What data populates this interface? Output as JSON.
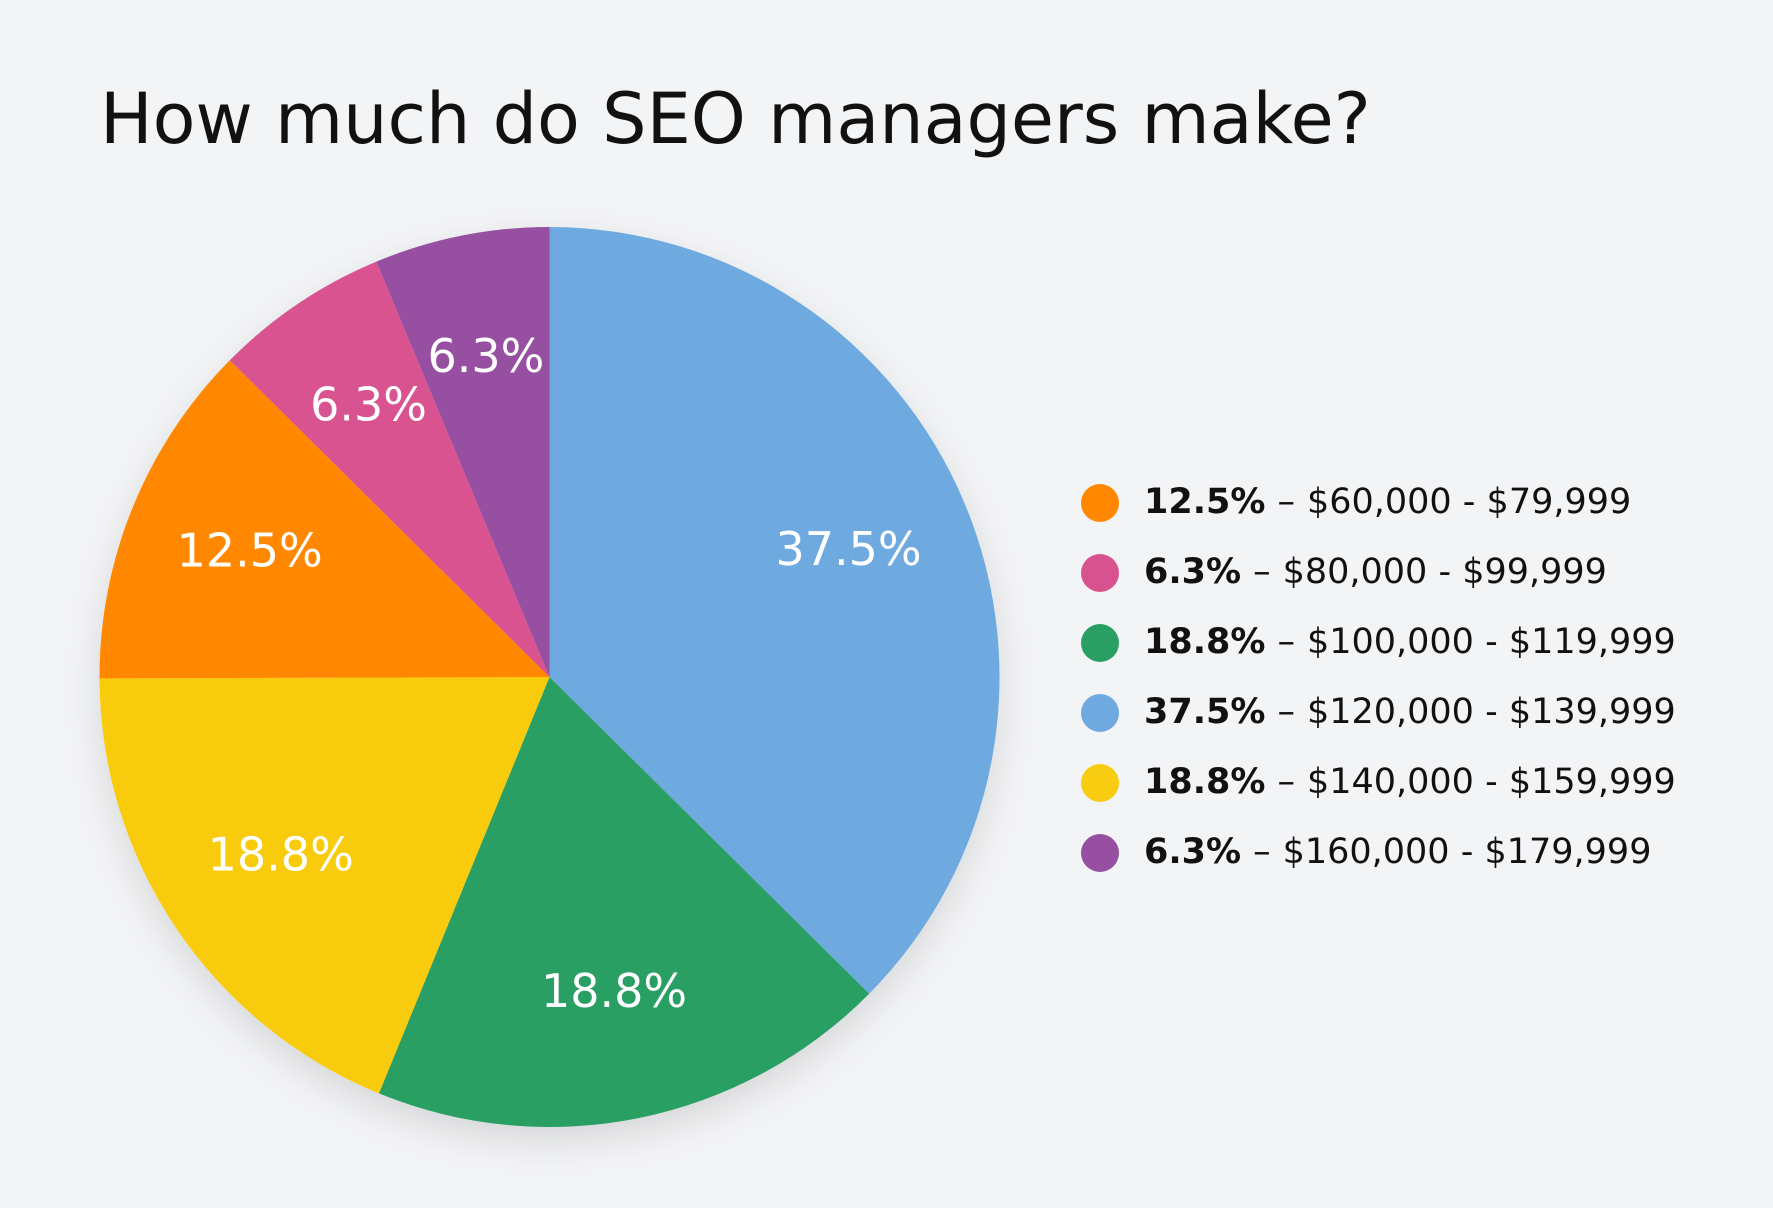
{
  "chart_data": {
    "type": "pie",
    "title": "How much do SEO managers make?",
    "categories": [
      "$60,000 - $79,999",
      "$80,000 - $99,999",
      "$100,000 - $119,999",
      "$120,000 - $139,999",
      "$140,000 - $159,999",
      "$160,000 - $179,999"
    ],
    "values": [
      12.5,
      6.3,
      18.8,
      37.5,
      18.8,
      6.3
    ],
    "value_labels": [
      "12.5%",
      "6.3%",
      "18.8%",
      "37.5%",
      "18.8%",
      "6.3%"
    ],
    "colors": [
      "#FF8800",
      "#D8528F",
      "#2A9F63",
      "#6EAADF",
      "#F8CC10",
      "#9750A1"
    ],
    "slice_order": [
      3,
      2,
      4,
      0,
      1,
      5
    ],
    "legend_separator": "–",
    "legend": "right"
  }
}
